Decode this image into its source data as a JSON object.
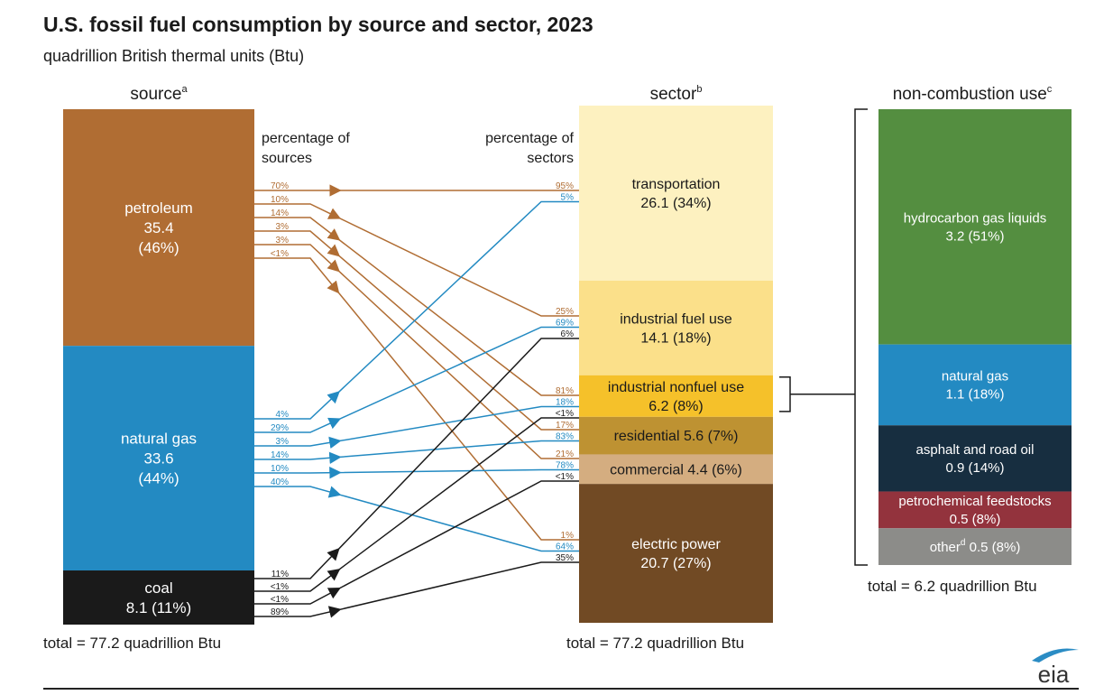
{
  "header": {
    "title": "U.S. fossil fuel consumption by source and sector, 2023",
    "subtitle": "quadrillion British thermal units (Btu)"
  },
  "logo": {
    "text": "eia",
    "arc_color": "#2b8cc4"
  },
  "chart_data": {
    "type": "sankey",
    "title": "U.S. fossil fuel consumption by source and sector, 2023",
    "units": "quadrillion British thermal units (Btu)",
    "columns": {
      "source": {
        "heading": "source",
        "footnote": "a",
        "total_label": "total = 77.2 quadrillion Btu",
        "pct_heading": [
          "percentage of",
          "sources"
        ]
      },
      "sector": {
        "heading": "sector",
        "footnote": "b",
        "total_label": "total = 77.2 quadrillion Btu",
        "pct_heading": [
          "percentage of",
          "sectors"
        ]
      },
      "noncombustion": {
        "heading": "non-combustion use",
        "footnote": "c",
        "total_label": "total = 6.2 quadrillion Btu"
      }
    },
    "sources": [
      {
        "id": "petroleum",
        "name": "petroleum",
        "value": 35.4,
        "share": "46%",
        "color": "#b06d33",
        "text_color": "#ffffff",
        "label_lines": [
          "petroleum",
          "35.4",
          "(46%)"
        ]
      },
      {
        "id": "natural_gas",
        "name": "natural gas",
        "value": 33.6,
        "share": "44%",
        "color": "#238ac2",
        "text_color": "#ffffff",
        "label_lines": [
          "natural gas",
          "33.6",
          "(44%)"
        ]
      },
      {
        "id": "coal",
        "name": "coal",
        "value": 8.1,
        "share": "11%",
        "color": "#1a1a1a",
        "text_color": "#ffffff",
        "label_lines": [
          "coal",
          "8.1 (11%)"
        ]
      }
    ],
    "sectors": [
      {
        "id": "transportation",
        "name": "transportation",
        "value": 26.1,
        "share": "34%",
        "color": "#fdf1c0",
        "text_color": "#1a1a1a",
        "label_lines": [
          "transportation",
          "26.1 (34%)"
        ]
      },
      {
        "id": "industrial_fuel",
        "name": "industrial fuel use",
        "value": 14.1,
        "share": "18%",
        "color": "#fbe08a",
        "text_color": "#1a1a1a",
        "label_lines": [
          "industrial fuel use",
          "14.1 (18%)"
        ]
      },
      {
        "id": "industrial_nonfuel",
        "name": "industrial nonfuel use",
        "value": 6.2,
        "share": "8%",
        "color": "#f5c12a",
        "text_color": "#1a1a1a",
        "label_lines": [
          "industrial nonfuel use",
          "6.2 (8%)"
        ]
      },
      {
        "id": "residential",
        "name": "residential",
        "value": 5.6,
        "share": "7%",
        "color": "#be9232",
        "text_color": "#1a1a1a",
        "label_lines": [
          "residential 5.6 (7%)"
        ]
      },
      {
        "id": "commercial",
        "name": "commercial",
        "value": 4.4,
        "share": "6%",
        "color": "#d4ad80",
        "text_color": "#1a1a1a",
        "label_lines": [
          "commercial 4.4 (6%)"
        ]
      },
      {
        "id": "electric_power",
        "name": "electric power",
        "value": 20.7,
        "share": "27%",
        "color": "#714a24",
        "text_color": "#ffffff",
        "label_lines": [
          "electric power",
          "20.7 (27%)"
        ]
      }
    ],
    "noncombustion": [
      {
        "name": "hydrocarbon gas liquids",
        "value": 3.2,
        "share": "51%",
        "color": "#548e40",
        "text_color": "#ffffff",
        "label_lines": [
          "hydrocarbon gas liquids",
          "3.2 (51%)"
        ]
      },
      {
        "name": "natural gas",
        "value": 1.1,
        "share": "18%",
        "color": "#238ac2",
        "text_color": "#ffffff",
        "label_lines": [
          "natural gas",
          "1.1 (18%)"
        ]
      },
      {
        "name": "asphalt and road oil",
        "value": 0.9,
        "share": "14%",
        "color": "#172e40",
        "text_color": "#ffffff",
        "label_lines": [
          "asphalt and road oil",
          "0.9 (14%)"
        ]
      },
      {
        "name": "petrochemical feedstocks",
        "value": 0.5,
        "share": "8%",
        "color": "#93333d",
        "text_color": "#ffffff",
        "label_lines": [
          "petrochemical feedstocks",
          "0.5 (8%)"
        ]
      },
      {
        "name": "other",
        "footnote": "d",
        "value": 0.5,
        "share": "8%",
        "color": "#8c8c89",
        "text_color": "#ffffff",
        "label_lines": [
          "other 0.5 (8%)"
        ]
      }
    ],
    "flows": [
      {
        "source": "petroleum",
        "sector": "transportation",
        "pct_of_source": "70%",
        "pct_of_sector": "95%"
      },
      {
        "source": "petroleum",
        "sector": "industrial_fuel",
        "pct_of_source": "10%",
        "pct_of_sector": "25%"
      },
      {
        "source": "petroleum",
        "sector": "industrial_nonfuel",
        "pct_of_source": "14%",
        "pct_of_sector": "81%"
      },
      {
        "source": "petroleum",
        "sector": "residential",
        "pct_of_source": "3%",
        "pct_of_sector": "17%"
      },
      {
        "source": "petroleum",
        "sector": "commercial",
        "pct_of_source": "3%",
        "pct_of_sector": "21%"
      },
      {
        "source": "petroleum",
        "sector": "electric_power",
        "pct_of_source": "<1%",
        "pct_of_sector": "1%"
      },
      {
        "source": "natural_gas",
        "sector": "transportation",
        "pct_of_source": "4%",
        "pct_of_sector": "5%"
      },
      {
        "source": "natural_gas",
        "sector": "industrial_fuel",
        "pct_of_source": "29%",
        "pct_of_sector": "69%"
      },
      {
        "source": "natural_gas",
        "sector": "industrial_nonfuel",
        "pct_of_source": "3%",
        "pct_of_sector": "18%"
      },
      {
        "source": "natural_gas",
        "sector": "residential",
        "pct_of_source": "14%",
        "pct_of_sector": "83%"
      },
      {
        "source": "natural_gas",
        "sector": "commercial",
        "pct_of_source": "10%",
        "pct_of_sector": "78%"
      },
      {
        "source": "natural_gas",
        "sector": "electric_power",
        "pct_of_source": "40%",
        "pct_of_sector": "64%"
      },
      {
        "source": "coal",
        "sector": "industrial_fuel",
        "pct_of_source": "11%",
        "pct_of_sector": "6%"
      },
      {
        "source": "coal",
        "sector": "industrial_nonfuel",
        "pct_of_source": "<1%",
        "pct_of_sector": "<1%"
      },
      {
        "source": "coal",
        "sector": "commercial",
        "pct_of_source": "<1%",
        "pct_of_sector": "<1%"
      },
      {
        "source": "coal",
        "sector": "electric_power",
        "pct_of_source": "89%",
        "pct_of_sector": "35%"
      }
    ],
    "flow_colors": {
      "petroleum": "#b06d33",
      "natural_gas": "#238ac2",
      "coal": "#1a1a1a"
    },
    "pct_label_colors": {
      "petroleum": "#b06d33",
      "natural_gas": "#238ac2",
      "coal": "#1a1a1a"
    }
  }
}
